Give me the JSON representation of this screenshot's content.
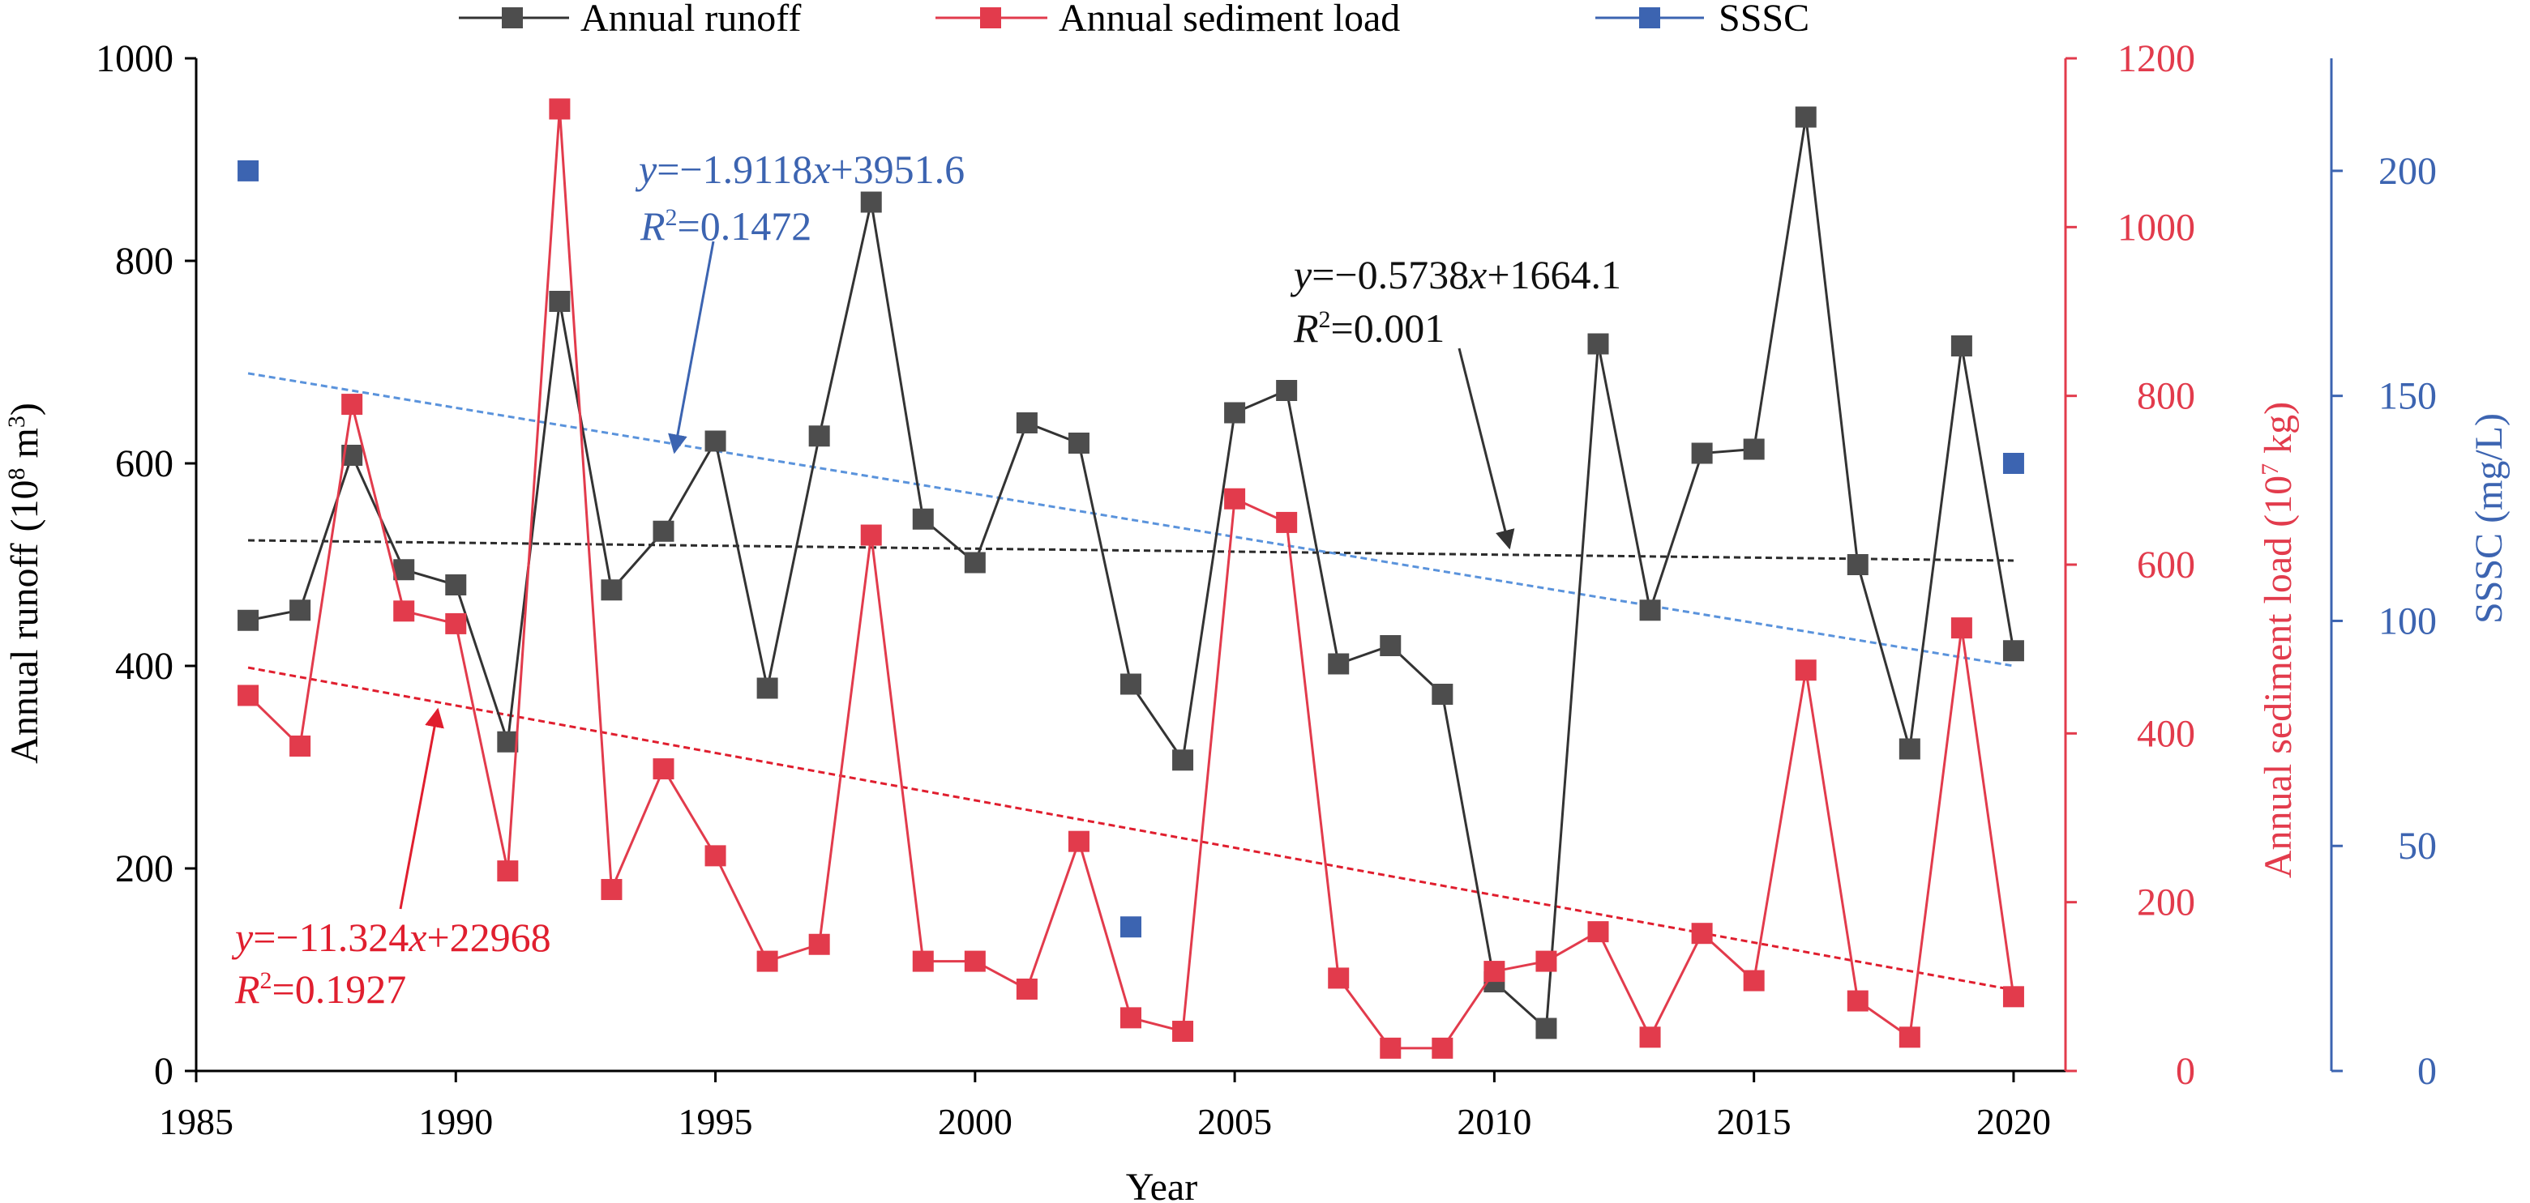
{
  "chart_data": {
    "type": "line",
    "xlabel": "Year",
    "x_ticks": [
      1985,
      1990,
      1995,
      2000,
      2005,
      2010,
      2015,
      2020
    ],
    "xlim": [
      1985,
      2021
    ],
    "y_axes": {
      "left": {
        "label_main": "Annual runoff",
        "label_unit": "(10",
        "label_sup": "8",
        "label_tail": " m",
        "label_sup2": "3",
        "label_close": ")",
        "ylim": [
          0,
          1000
        ],
        "ticks": [
          0,
          200,
          400,
          600,
          800,
          1000
        ]
      },
      "right1": {
        "label_main": "Annual sediment load (10",
        "label_sup": "7",
        "label_tail": " kg)",
        "ylim": [
          0,
          1200
        ],
        "ticks": [
          0,
          200,
          400,
          600,
          800,
          1000,
          1200
        ],
        "color": "#e23b4c"
      },
      "right2": {
        "label_main": "SSSC (mg/L)",
        "ylim": [
          0,
          225
        ],
        "ticks": [
          0,
          50,
          100,
          150,
          200
        ],
        "color": "#3c64b1"
      }
    },
    "series": [
      {
        "name": "Annual runoff",
        "axis": "left",
        "color": "#333333",
        "marker_color": "#4d4d4d",
        "x": [
          1986,
          1987,
          1988,
          1989,
          1990,
          1991,
          1992,
          1993,
          1994,
          1995,
          1996,
          1997,
          1998,
          1999,
          2000,
          2001,
          2002,
          2003,
          2004,
          2005,
          2006,
          2007,
          2008,
          2009,
          2010,
          2011,
          2012,
          2013,
          2014,
          2015,
          2016,
          2017,
          2018,
          2019,
          2020
        ],
        "y": [
          445,
          455,
          608,
          495,
          480,
          325,
          760,
          475,
          533,
          622,
          378,
          627,
          858,
          545,
          502,
          640,
          620,
          382,
          307,
          650,
          672,
          402,
          420,
          372,
          88,
          42,
          718,
          455,
          610,
          614,
          942,
          500,
          318,
          716,
          415
        ]
      },
      {
        "name": "Annual sediment load",
        "axis": "right1",
        "color": "#e23b4c",
        "marker_color": "#e23b4c",
        "x": [
          1986,
          1987,
          1988,
          1989,
          1990,
          1991,
          1992,
          1993,
          1994,
          1995,
          1996,
          1997,
          1998,
          1999,
          2000,
          2001,
          2002,
          2003,
          2004,
          2005,
          2006,
          2007,
          2008,
          2009,
          2010,
          2011,
          2012,
          2013,
          2014,
          2015,
          2016,
          2017,
          2018,
          2019,
          2020
        ],
        "y": [
          445,
          385,
          790,
          545,
          530,
          237,
          1140,
          215,
          358,
          255,
          130,
          150,
          635,
          130,
          130,
          97,
          272,
          63,
          47,
          678,
          650,
          110,
          27,
          27,
          118,
          130,
          165,
          40,
          163,
          107,
          475,
          83,
          40,
          525,
          88
        ]
      },
      {
        "name": "SSSC",
        "axis": "right2",
        "color": "#3c64b1",
        "marker_color": "#3c64b1",
        "markers_only": true,
        "x": [
          1986,
          2003,
          2020
        ],
        "y": [
          200,
          32,
          135
        ]
      }
    ],
    "trendlines": [
      {
        "axis": "left",
        "color": "#2b2b2b",
        "x": [
          1986,
          2020
        ],
        "y": [
          524,
          504
        ]
      },
      {
        "axis": "right2",
        "color": "#5a93dc",
        "x": [
          1986,
          2020
        ],
        "y": [
          155,
          90
        ]
      },
      {
        "axis": "right1",
        "color": "#e01e2e",
        "x": [
          1986,
          2020
        ],
        "y": [
          478,
          96
        ]
      }
    ],
    "annotations": {
      "blue": {
        "eq": "y=−1.9118x+3951.6",
        "eq_pre": "y",
        "eq_post": "=−1.9118",
        "eq_var": "x",
        "eq_const": "+3951.6",
        "r_pre": "R",
        "r_sup": "2",
        "r_val": "=0.1472",
        "color": "#3c64b1"
      },
      "black": {
        "eq_pre": "y",
        "eq_post": "=−0.5738",
        "eq_var": "x",
        "eq_const": "+1664.1",
        "r_pre": "R",
        "r_sup": "2",
        "r_val": "=0.001",
        "color": "#111111"
      },
      "red": {
        "eq_pre": "y",
        "eq_post": "=−11.324",
        "eq_var": "x",
        "eq_const": "+22968",
        "r_pre": "R",
        "r_sup": "2",
        "r_val": "=0.1927",
        "color": "#e01e2e"
      }
    },
    "legend": {
      "placement": "top",
      "entries": [
        "Annual runoff",
        "Annual sediment load",
        "SSSC"
      ]
    }
  }
}
